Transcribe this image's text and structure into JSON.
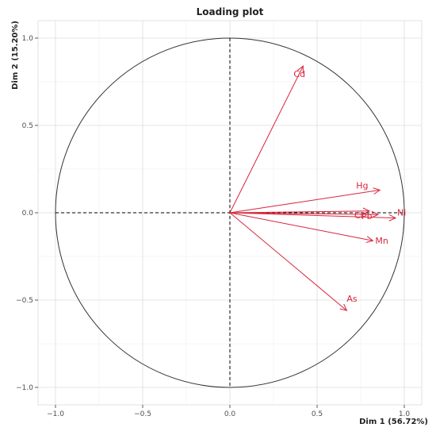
{
  "chart_data": {
    "type": "scatter",
    "title": "Loading plot",
    "xlabel": "Dim 1 (56.72%)",
    "ylabel": "Dim 2 (15.20%)",
    "xlim": [
      -1.1,
      1.1
    ],
    "ylim": [
      -1.1,
      1.1
    ],
    "x_ticks": [
      -1.0,
      -0.5,
      0.0,
      0.5,
      1.0
    ],
    "y_ticks": [
      -1.0,
      -0.5,
      0.0,
      0.5,
      1.0
    ],
    "x_tick_labels": [
      "−1.0",
      "−0.5",
      "0.0",
      "0.5",
      "1.0"
    ],
    "y_tick_labels": [
      "−1.0",
      "−0.5",
      "0.0",
      "0.5",
      "1.0"
    ],
    "grid": true,
    "unit_circle": true,
    "arrow_color": "#d7263d",
    "variables": [
      {
        "name": "Cd",
        "x": 0.42,
        "y": 0.84
      },
      {
        "name": "Hg",
        "x": 0.86,
        "y": 0.13
      },
      {
        "name": "Pb",
        "x": 0.8,
        "y": 0.01
      },
      {
        "name": "Ni",
        "x": 0.95,
        "y": -0.03
      },
      {
        "name": "Cr",
        "x": 0.85,
        "y": -0.01
      },
      {
        "name": "Mn",
        "x": 0.82,
        "y": -0.16
      },
      {
        "name": "As",
        "x": 0.67,
        "y": -0.56
      }
    ]
  }
}
